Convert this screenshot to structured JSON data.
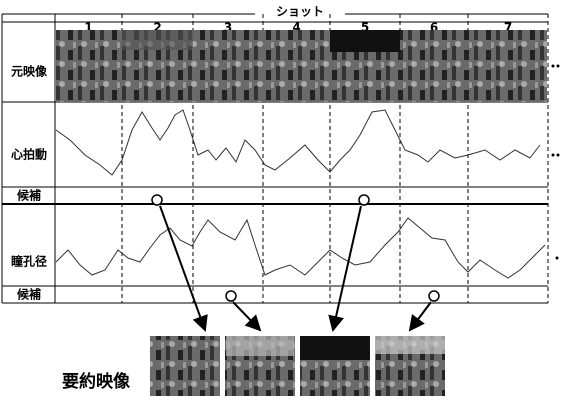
{
  "header": {
    "shot_label": "ショット",
    "shots": [
      "1",
      "2",
      "3",
      "4",
      "5",
      "6",
      "7"
    ]
  },
  "rows": {
    "video": "元映像",
    "heart": "心拍動",
    "candidate_1": "候補",
    "pupil": "瞳孔径",
    "candidate_2": "候補"
  },
  "summary_label": "要約映像"
}
